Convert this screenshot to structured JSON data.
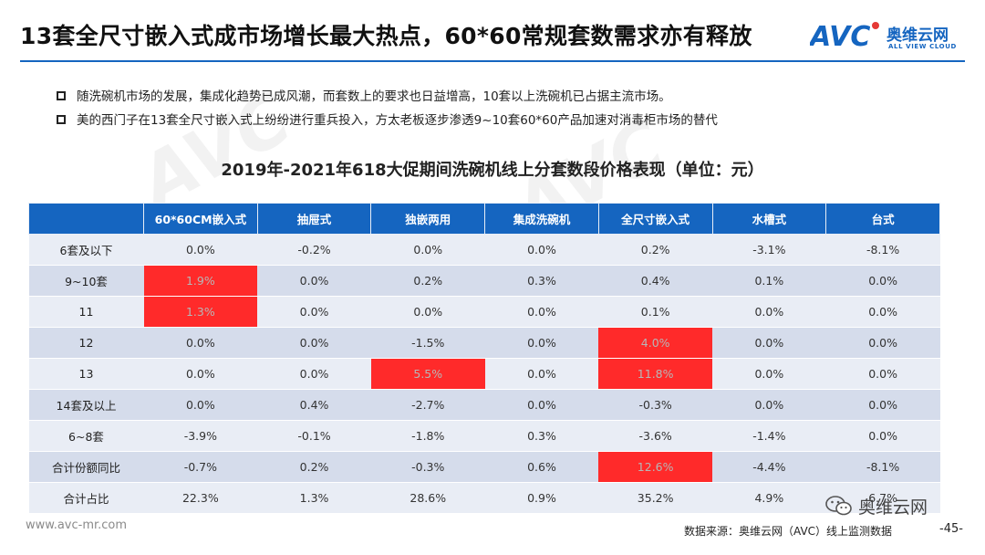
{
  "title": "13套全尺寸嵌入式成市场增长最大热点，60*60常规套数需求亦有释放",
  "logo": {
    "cn": "奥维云网",
    "en": "ALL VIEW CLOUD",
    "mark": "AVC"
  },
  "bullets": [
    "随洗碗机市场的发展，集成化趋势已成风潮，而套数上的要求也日益增高，10套以上洗碗机已占据主流市场。",
    "美的西门子在13套全尺寸嵌入式上纷纷进行重兵投入，方太老板逐步渗透9~10套60*60产品加速对消毒柜市场的替代"
  ],
  "table": {
    "title": "2019年-2021年618大促期间洗碗机线上分套数段价格表现（单位：元）",
    "columns": [
      "60*60CM嵌入式",
      "抽屉式",
      "独嵌两用",
      "集成洗碗机",
      "全尺寸嵌入式",
      "水槽式",
      "台式"
    ],
    "rows": [
      {
        "label": "6套及以下",
        "cells": [
          "0.0%",
          "-0.2%",
          "0.0%",
          "0.0%",
          "0.2%",
          "-3.1%",
          "-8.1%"
        ],
        "highlight": []
      },
      {
        "label": "9~10套",
        "cells": [
          "1.9%",
          "0.0%",
          "0.2%",
          "0.3%",
          "0.4%",
          "0.1%",
          "0.0%"
        ],
        "highlight": [
          0
        ]
      },
      {
        "label": "11",
        "cells": [
          "1.3%",
          "0.0%",
          "0.0%",
          "0.0%",
          "0.1%",
          "0.0%",
          "0.0%"
        ],
        "highlight": [
          0
        ]
      },
      {
        "label": "12",
        "cells": [
          "0.0%",
          "0.0%",
          "-1.5%",
          "0.0%",
          "4.0%",
          "0.0%",
          "0.0%"
        ],
        "highlight": [
          4
        ]
      },
      {
        "label": "13",
        "cells": [
          "0.0%",
          "0.0%",
          "5.5%",
          "0.0%",
          "11.8%",
          "0.0%",
          "0.0%"
        ],
        "highlight": [
          2,
          4
        ]
      },
      {
        "label": "14套及以上",
        "cells": [
          "0.0%",
          "0.4%",
          "-2.7%",
          "0.0%",
          "-0.3%",
          "0.0%",
          "0.0%"
        ],
        "highlight": []
      },
      {
        "label": "6~8套",
        "cells": [
          "-3.9%",
          "-0.1%",
          "-1.8%",
          "0.3%",
          "-3.6%",
          "-1.4%",
          "0.0%"
        ],
        "highlight": []
      },
      {
        "label": "合计份额同比",
        "cells": [
          "-0.7%",
          "0.2%",
          "-0.3%",
          "0.6%",
          "12.6%",
          "-4.4%",
          "-8.1%"
        ],
        "highlight": [
          4
        ]
      },
      {
        "label": "合计占比",
        "cells": [
          "22.3%",
          "1.3%",
          "28.6%",
          "0.9%",
          "35.2%",
          "4.9%",
          "6.7%"
        ],
        "highlight": []
      }
    ]
  },
  "colors": {
    "header_blue": "#1565c0",
    "highlight_red": "#ff2a2a",
    "row_light": "#e9edf5",
    "row_dark": "#d5dceb"
  },
  "footer": {
    "url": "www.avc-mr.com",
    "source": "数据来源：奥维云网（AVC）线上监测数据",
    "page": "-45-",
    "wechat": "奥维云网"
  }
}
